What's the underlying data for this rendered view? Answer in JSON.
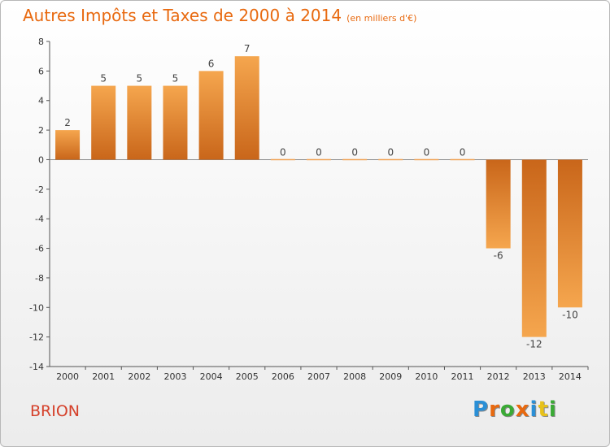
{
  "header": {
    "title": "Autres Impôts et Taxes de 2000 à 2014",
    "subtitle": "(en milliers d'€)"
  },
  "commune": "BRION",
  "logo": {
    "letters": [
      "P",
      "r",
      "o",
      "x",
      "i",
      "t",
      "i"
    ],
    "colors": [
      "#2a8fd6",
      "#e8690f",
      "#3aaa35",
      "#e8690f",
      "#2a8fd6",
      "#e8c21a",
      "#3aaa35"
    ]
  },
  "chart_data": {
    "type": "bar",
    "categories": [
      "2000",
      "2001",
      "2002",
      "2003",
      "2004",
      "2005",
      "2006",
      "2007",
      "2008",
      "2009",
      "2010",
      "2011",
      "2012",
      "2013",
      "2014"
    ],
    "values": [
      2,
      5,
      5,
      5,
      6,
      7,
      0,
      0,
      0,
      0,
      0,
      0,
      -6,
      -12,
      -10
    ],
    "ylim": [
      -14,
      8
    ],
    "yticks": [
      8,
      6,
      4,
      2,
      0,
      -2,
      -4,
      -6,
      -8,
      -10,
      -12,
      -14
    ],
    "grid": false,
    "bar_colors": {
      "light": "#f5a64e",
      "dark": "#c9661a"
    }
  }
}
